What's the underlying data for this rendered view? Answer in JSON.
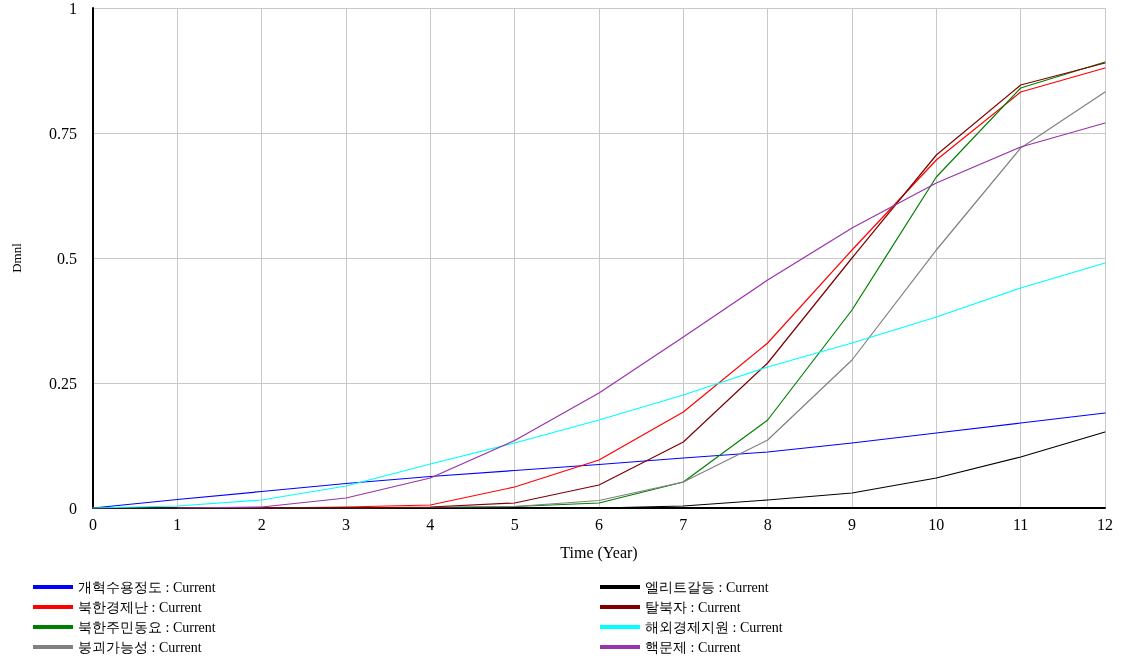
{
  "chart_data": {
    "type": "line",
    "xlabel": "Time (Year)",
    "ylabel": "Dmnl",
    "x": [
      0,
      1,
      2,
      3,
      4,
      5,
      6,
      7,
      8,
      9,
      10,
      11,
      12
    ],
    "xlim": [
      0,
      12
    ],
    "xticks": [
      0,
      1,
      2,
      3,
      4,
      5,
      6,
      7,
      8,
      9,
      10,
      11,
      12
    ],
    "ylim": [
      0,
      1
    ],
    "yticks": [
      0,
      0.25,
      0.5,
      0.75,
      1
    ],
    "grid": true,
    "legend": "bottom",
    "marker": "none",
    "line_style": "solid",
    "series": [
      {
        "name": "개혁수용정도 : Current",
        "color": "#0000ff",
        "values": [
          0,
          0.017,
          0.033,
          0.049,
          0.063,
          0.075,
          0.087,
          0.1,
          0.112,
          0.13,
          0.15,
          0.17,
          0.19
        ]
      },
      {
        "name": "북한경제난 : Current",
        "color": "#ff0000",
        "values": [
          null,
          null,
          0,
          0.002,
          0.006,
          0.042,
          0.096,
          0.192,
          0.33,
          0.516,
          0.696,
          0.832,
          0.88
        ]
      },
      {
        "name": "북한주민동요 : Current",
        "color": "#008000",
        "values": [
          null,
          null,
          null,
          0,
          0.001,
          0.003,
          0.01,
          0.052,
          0.176,
          0.396,
          0.662,
          0.84,
          0.892
        ]
      },
      {
        "name": "붕괴가능성 : Current",
        "color": "#808080",
        "values": [
          0,
          0,
          0,
          0,
          0.001,
          0.003,
          0.015,
          0.052,
          0.136,
          0.296,
          0.516,
          0.72,
          0.832
        ]
      },
      {
        "name": "엘리트갈등 : Current",
        "color": "#000000",
        "values": [
          0,
          0,
          0,
          0,
          0,
          0,
          0,
          0.004,
          0.016,
          0.03,
          0.06,
          0.102,
          0.152
        ]
      },
      {
        "name": "탈북자 : Current",
        "color": "#800000",
        "values": [
          0,
          0,
          0,
          0,
          0.002,
          0.01,
          0.046,
          0.132,
          0.29,
          0.5,
          0.706,
          0.846,
          0.89
        ]
      },
      {
        "name": "해외경제지원 : Current",
        "color": "#00ffff",
        "values": [
          0,
          0.004,
          0.016,
          0.044,
          0.088,
          0.13,
          0.176,
          0.226,
          0.282,
          0.33,
          0.382,
          0.44,
          0.49
        ]
      },
      {
        "name": "핵문제 : Current",
        "color": "#9933aa",
        "values": [
          null,
          0,
          0.002,
          0.02,
          0.06,
          0.135,
          0.23,
          0.342,
          0.456,
          0.56,
          0.65,
          0.722,
          0.77
        ]
      }
    ]
  }
}
